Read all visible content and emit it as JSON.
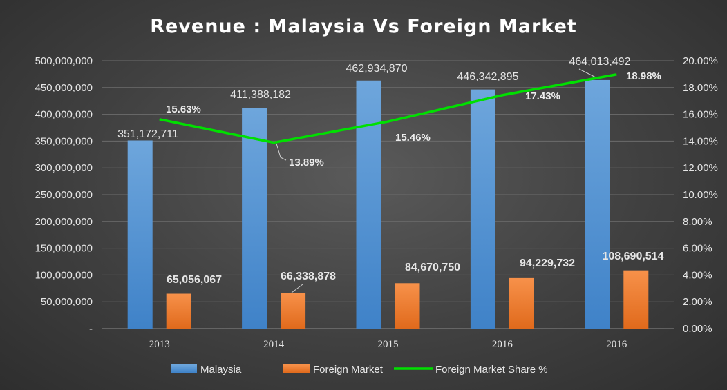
{
  "chart_data": {
    "type": "bar",
    "title": "Revenue : Malaysia Vs Foreign Market",
    "categories": [
      "2013",
      "2014",
      "2015",
      "2016",
      "2016"
    ],
    "series": [
      {
        "name": "Malaysia",
        "kind": "bar",
        "axis": "left",
        "color": "#5b9bd5",
        "values": [
          351172711,
          411388182,
          462934870,
          446342895,
          464013492
        ],
        "labels": [
          "351,172,711",
          "411,388,182",
          "462,934,870",
          "446,342,895",
          "464,013,492"
        ]
      },
      {
        "name": "Foreign Market",
        "kind": "bar",
        "axis": "left",
        "color": "#ed7d31",
        "values": [
          65056067,
          66338878,
          84670750,
          94229732,
          108690514
        ],
        "labels": [
          "65,056,067",
          "66,338,878",
          "84,670,750",
          "94,229,732",
          "108,690,514"
        ]
      },
      {
        "name": "Foreign Market Share %",
        "kind": "line",
        "axis": "right",
        "color": "#00e000",
        "values": [
          15.63,
          13.89,
          15.46,
          17.43,
          18.98
        ],
        "labels": [
          "15.63%",
          "13.89%",
          "15.46%",
          "17.43%",
          "18.98%"
        ]
      }
    ],
    "y_left": {
      "ylim": [
        0,
        500000000
      ],
      "ticks": [
        "-",
        "50,000,000",
        "100,000,000",
        "150,000,000",
        "200,000,000",
        "250,000,000",
        "300,000,000",
        "350,000,000",
        "400,000,000",
        "450,000,000",
        "500,000,000"
      ]
    },
    "y_right": {
      "ylim": [
        0,
        20
      ],
      "ticks": [
        "0.00%",
        "2.00%",
        "4.00%",
        "6.00%",
        "8.00%",
        "10.00%",
        "12.00%",
        "14.00%",
        "16.00%",
        "18.00%",
        "20.00%"
      ]
    },
    "grid": true,
    "legend": "bottom"
  }
}
